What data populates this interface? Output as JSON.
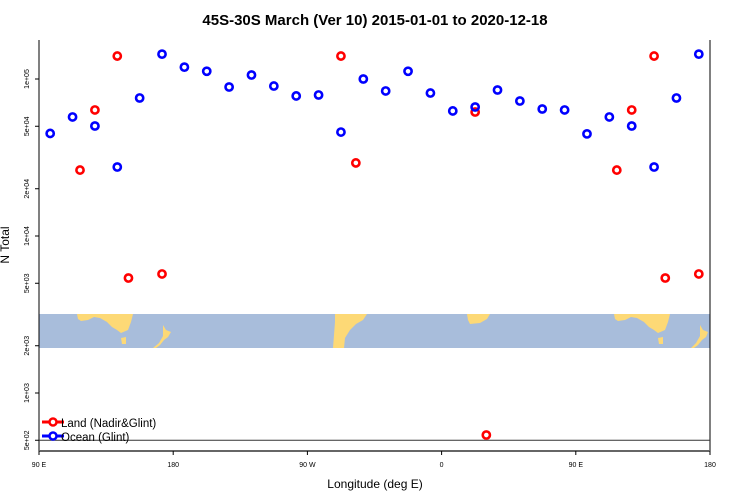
{
  "chart_data": {
    "type": "scatter",
    "title": "45S-30S March (Ver 10)   2015-01-01 to 2020-12-18",
    "xlabel": "Longitude (deg E)",
    "ylabel": "N Total",
    "xlim": [
      90,
      540
    ],
    "ylim_log": [
      430,
      200000
    ],
    "y_scale": "log",
    "x_ticks": [
      {
        "value": 90,
        "label": "90 E"
      },
      {
        "value": 180,
        "label": "180"
      },
      {
        "value": 270,
        "label": "90 W"
      },
      {
        "value": 360,
        "label": "0"
      },
      {
        "value": 450,
        "label": "90 E"
      },
      {
        "value": 540,
        "label": "180"
      }
    ],
    "y_ticks": [
      {
        "value": 100000,
        "label": "1e+05"
      },
      {
        "value": 50000,
        "label": "5e+04"
      },
      {
        "value": 20000,
        "label": "2e+04"
      },
      {
        "value": 10000,
        "label": "1e+04"
      },
      {
        "value": 5000,
        "label": "5e+03"
      },
      {
        "value": 2000,
        "label": "2e+03"
      },
      {
        "value": 1000,
        "label": "1e+03"
      },
      {
        "value": 500,
        "label": "5e+02"
      }
    ],
    "reference_line": 500,
    "legend_position": "bottom-left",
    "series": [
      {
        "name": "Land (Nadir&Glint)",
        "color": "#ff0000",
        "points": [
          [
            117.5,
            26300
          ],
          [
            127.5,
            63500
          ],
          [
            142.5,
            140000
          ],
          [
            150,
            5400
          ],
          [
            172.5,
            5730
          ],
          [
            292.5,
            140000
          ],
          [
            302.5,
            29200
          ],
          [
            382.5,
            61600
          ],
          [
            390,
            540
          ],
          [
            477.5,
            26300
          ],
          [
            487.5,
            63500
          ],
          [
            502.5,
            140000
          ],
          [
            510,
            5400
          ],
          [
            532.5,
            5730
          ]
        ]
      },
      {
        "name": "Ocean (Glint)",
        "color": "#0000ff",
        "points": [
          [
            97.5,
            45000
          ],
          [
            112.5,
            57300
          ],
          [
            127.5,
            50200
          ],
          [
            142.5,
            27500
          ],
          [
            157.5,
            75700
          ],
          [
            172.5,
            144000
          ],
          [
            187.5,
            119000
          ],
          [
            202.5,
            112000
          ],
          [
            217.5,
            88900
          ],
          [
            232.5,
            106000
          ],
          [
            247.5,
            90200
          ],
          [
            262.5,
            78000
          ],
          [
            277.5,
            79100
          ],
          [
            292.5,
            45900
          ],
          [
            307.5,
            100000
          ],
          [
            322.5,
            83900
          ],
          [
            337.5,
            112000
          ],
          [
            352.5,
            81400
          ],
          [
            367.5,
            62600
          ],
          [
            382.5,
            66300
          ],
          [
            397.5,
            85100
          ],
          [
            412.5,
            72400
          ],
          [
            427.5,
            64400
          ],
          [
            442.5,
            63500
          ],
          [
            457.5,
            44700
          ],
          [
            472.5,
            57300
          ],
          [
            487.5,
            50200
          ],
          [
            502.5,
            27500
          ],
          [
            517.5,
            75700
          ],
          [
            532.5,
            144000
          ]
        ]
      }
    ],
    "map_colors": {
      "ocean": "#a8bddb",
      "land": "#fdd976"
    }
  }
}
